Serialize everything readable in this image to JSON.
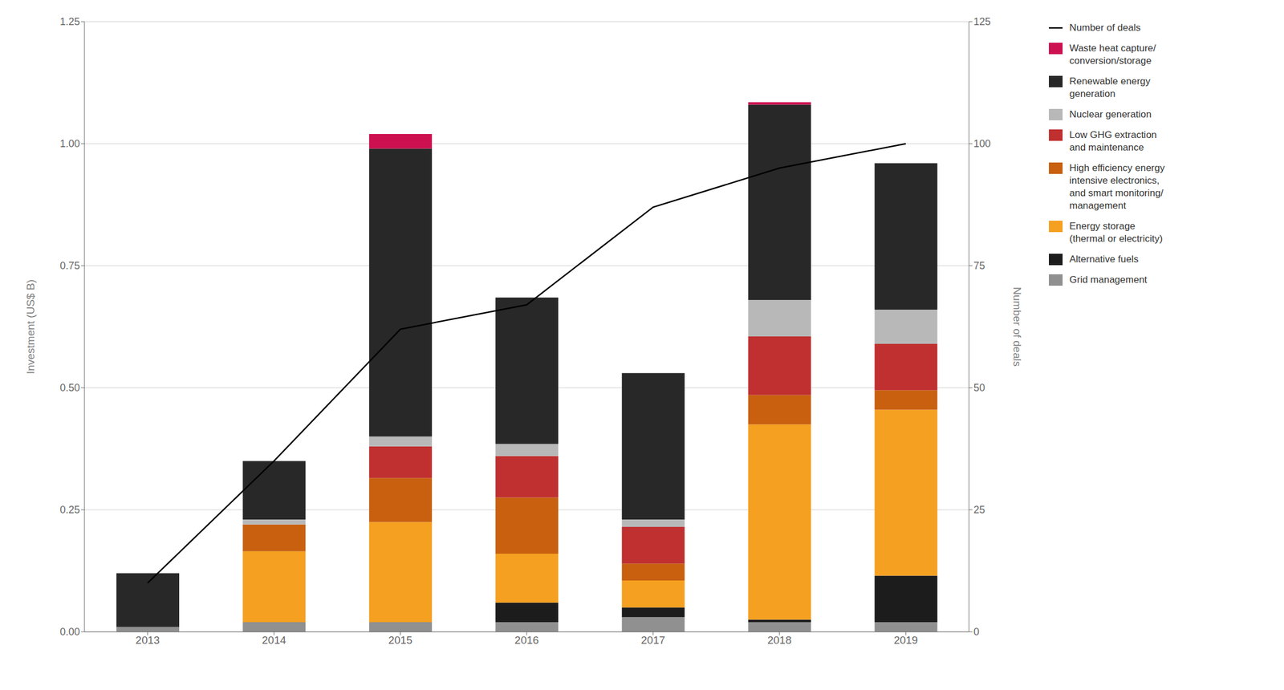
{
  "chart_data": {
    "type": "bar",
    "stacked": true,
    "categories": [
      "2013",
      "2014",
      "2015",
      "2016",
      "2017",
      "2018",
      "2019"
    ],
    "ylabel": "Investment (US$ B)",
    "y2label": "Number of deals",
    "ylim": [
      0.0,
      1.25
    ],
    "yticks": [
      {
        "value": 0.0,
        "label": "0.00"
      },
      0.25,
      {
        "value": 0.5,
        "label": "0.50"
      },
      0.75,
      {
        "value": 1.0,
        "label": "1.00"
      },
      1.25
    ],
    "y2lim": [
      0,
      125
    ],
    "y2ticks": [
      0,
      25,
      50,
      75,
      100,
      125
    ],
    "grid": true,
    "legend": "right",
    "series": [
      {
        "name": "Grid management",
        "color": "#909090",
        "values": [
          0.01,
          0.02,
          0.02,
          0.02,
          0.03,
          0.02,
          0.02
        ]
      },
      {
        "name": "Alternative fuels",
        "color": "#1c1c1c",
        "values": [
          0.0,
          0.0,
          0.0,
          0.04,
          0.02,
          0.005,
          0.095
        ]
      },
      {
        "name": "Energy storage\n(thermal or electricity)",
        "color": "#f5a020",
        "values": [
          0.0,
          0.145,
          0.205,
          0.1,
          0.055,
          0.4,
          0.34
        ]
      },
      {
        "name": "High efficiency energy\nintensive electronics,\nand smart monitoring/\nmanagement",
        "color": "#c86010",
        "values": [
          0.0,
          0.055,
          0.09,
          0.115,
          0.035,
          0.06,
          0.04
        ]
      },
      {
        "name": "Low GHG extraction\nand maintenance",
        "color": "#c03030",
        "values": [
          0.0,
          0.0,
          0.065,
          0.085,
          0.075,
          0.12,
          0.095
        ]
      },
      {
        "name": "Nuclear generation",
        "color": "#b8b8b8",
        "values": [
          0.0,
          0.01,
          0.02,
          0.025,
          0.015,
          0.075,
          0.07
        ]
      },
      {
        "name": "Renewable energy\ngeneration",
        "color": "#282828",
        "values": [
          0.11,
          0.12,
          0.59,
          0.3,
          0.3,
          0.4,
          0.3
        ]
      },
      {
        "name": "Waste heat capture/\nconversion/storage",
        "color": "#cc1050",
        "values": [
          0.0,
          0.0,
          0.03,
          0.0,
          0.0,
          0.005,
          0.0
        ]
      },
      {
        "name": "Number of deals",
        "type": "line",
        "axis": "y2",
        "color": "#000000",
        "values": [
          10,
          35,
          62,
          67,
          87,
          95,
          100
        ]
      }
    ]
  }
}
